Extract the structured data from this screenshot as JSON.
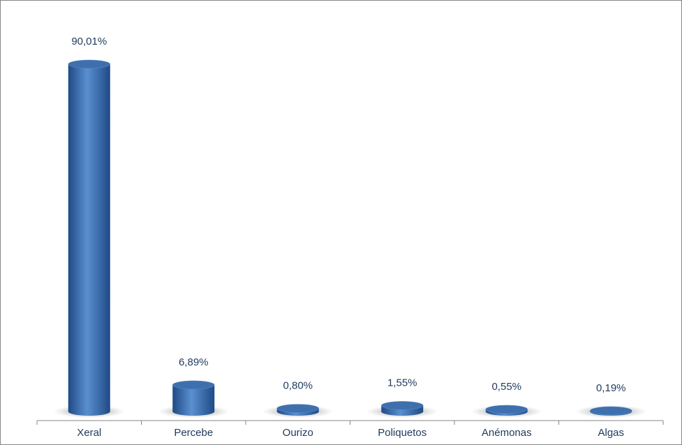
{
  "chart_data": {
    "type": "bar",
    "categories": [
      "Xeral",
      "Percebe",
      "Ourizo",
      "Poliquetos",
      "Anémonas",
      "Algas"
    ],
    "values": [
      90.01,
      6.89,
      0.8,
      1.55,
      0.55,
      0.19
    ],
    "value_labels": [
      "90,01%",
      "6,89%",
      "0,80%",
      "1,55%",
      "0,55%",
      "0,19%"
    ],
    "color": "#4a7ebb"
  }
}
